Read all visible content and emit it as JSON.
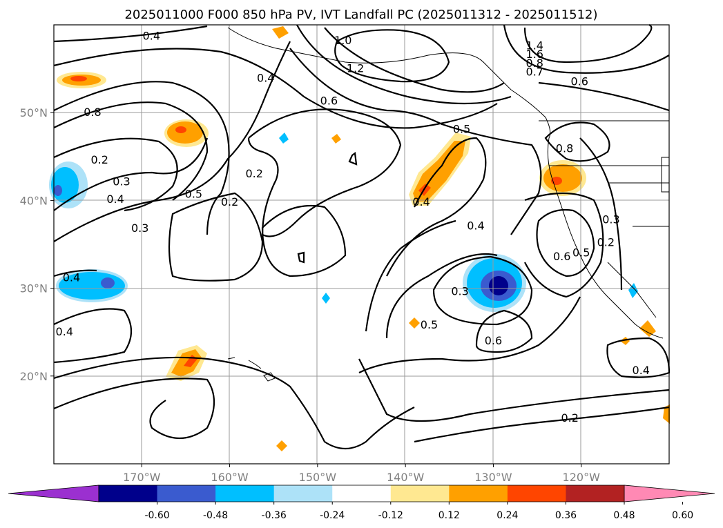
{
  "figure": {
    "title": "2025011000 F000 850 hPa PV, IVT Landfall PC (2025011312 - 2025011512)"
  },
  "chart_data": {
    "type": "map-contour",
    "title": "2025011000 F000 850 hPa PV, IVT Landfall PC (2025011312 - 2025011512)",
    "lon_range": [
      -180,
      -110
    ],
    "lat_range": [
      10,
      60
    ],
    "grid": true,
    "x_ticks": [
      {
        "value": -170,
        "label": "170°W"
      },
      {
        "value": -160,
        "label": "160°W"
      },
      {
        "value": -150,
        "label": "150°W"
      },
      {
        "value": -140,
        "label": "140°W"
      },
      {
        "value": -130,
        "label": "130°W"
      },
      {
        "value": -120,
        "label": "120°W"
      }
    ],
    "y_ticks": [
      {
        "value": 20,
        "label": "20°N"
      },
      {
        "value": 30,
        "label": "30°N"
      },
      {
        "value": 40,
        "label": "40°N"
      },
      {
        "value": 50,
        "label": "50°N"
      }
    ],
    "contour_labels": [
      {
        "lon": -168.9,
        "lat": 58.7,
        "text": "0.4"
      },
      {
        "lon": -147.1,
        "lat": 58.2,
        "text": "1.0"
      },
      {
        "lon": -145.7,
        "lat": 55.0,
        "text": "1.2"
      },
      {
        "lon": -125.3,
        "lat": 57.6,
        "text": "1.4"
      },
      {
        "lon": -125.3,
        "lat": 56.6,
        "text": "1.6"
      },
      {
        "lon": -125.3,
        "lat": 55.6,
        "text": "0.8"
      },
      {
        "lon": -125.3,
        "lat": 54.6,
        "text": "0.7"
      },
      {
        "lon": -120.2,
        "lat": 53.5,
        "text": "0.6"
      },
      {
        "lon": -155.9,
        "lat": 53.9,
        "text": "0.4"
      },
      {
        "lon": -148.7,
        "lat": 51.3,
        "text": "0.6"
      },
      {
        "lon": -133.6,
        "lat": 48.1,
        "text": "0.5"
      },
      {
        "lon": -175.6,
        "lat": 50.0,
        "text": "0.8"
      },
      {
        "lon": -174.8,
        "lat": 44.6,
        "text": "0.2"
      },
      {
        "lon": -172.3,
        "lat": 42.1,
        "text": "0.3"
      },
      {
        "lon": -173.0,
        "lat": 40.1,
        "text": "0.4"
      },
      {
        "lon": -164.1,
        "lat": 40.7,
        "text": "0.5"
      },
      {
        "lon": -157.2,
        "lat": 43.0,
        "text": "0.2"
      },
      {
        "lon": -160.0,
        "lat": 39.8,
        "text": "0.2"
      },
      {
        "lon": -170.2,
        "lat": 36.8,
        "text": "0.3"
      },
      {
        "lon": -138.2,
        "lat": 39.8,
        "text": "0.4"
      },
      {
        "lon": -121.9,
        "lat": 45.9,
        "text": "0.8"
      },
      {
        "lon": -132.0,
        "lat": 37.1,
        "text": "0.4"
      },
      {
        "lon": -178.0,
        "lat": 31.2,
        "text": "0.4"
      },
      {
        "lon": -133.8,
        "lat": 29.6,
        "text": "0.3"
      },
      {
        "lon": -137.3,
        "lat": 25.8,
        "text": "0.5"
      },
      {
        "lon": -130.0,
        "lat": 24.0,
        "text": "0.6"
      },
      {
        "lon": -178.8,
        "lat": 25.0,
        "text": "0.4"
      },
      {
        "lon": -122.2,
        "lat": 33.6,
        "text": "0.6"
      },
      {
        "lon": -120.0,
        "lat": 34.0,
        "text": "0.5"
      },
      {
        "lon": -117.2,
        "lat": 35.2,
        "text": "0.2"
      },
      {
        "lon": -116.6,
        "lat": 37.8,
        "text": "0.3"
      },
      {
        "lon": -113.2,
        "lat": 20.6,
        "text": "0.4"
      },
      {
        "lon": -121.3,
        "lat": 15.2,
        "text": "0.2"
      }
    ],
    "colorbar": {
      "ticks": [
        "-0.60",
        "-0.48",
        "-0.36",
        "-0.24",
        "-0.12",
        "0.12",
        "0.24",
        "0.36",
        "0.48",
        "0.60"
      ],
      "colors": [
        "#9b30d0",
        "#00008b",
        "#3a5bcf",
        "#00bfff",
        "#ade2f8",
        "#ffffff",
        "#ffe891",
        "#ffa000",
        "#ff4500",
        "#b22222",
        "#ff89b4"
      ],
      "extend": "both"
    }
  }
}
